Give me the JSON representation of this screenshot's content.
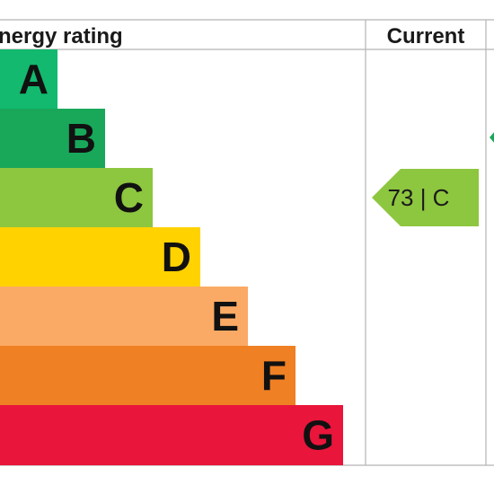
{
  "chart_data": {
    "type": "bar",
    "title": "Energy rating",
    "columns": [
      "Current"
    ],
    "bands": [
      {
        "letter": "A",
        "color": "#12b96e"
      },
      {
        "letter": "B",
        "color": "#19a75a"
      },
      {
        "letter": "C",
        "color": "#8dc63f"
      },
      {
        "letter": "D",
        "color": "#ffd200"
      },
      {
        "letter": "E",
        "color": "#fbaa65"
      },
      {
        "letter": "F",
        "color": "#ef8023"
      },
      {
        "letter": "G",
        "color": "#e9153b"
      }
    ],
    "current": {
      "value": 73,
      "band": "C",
      "label": "73 | C",
      "color": "#8dc63f"
    },
    "potential_pointer_color": "#19a75a"
  }
}
